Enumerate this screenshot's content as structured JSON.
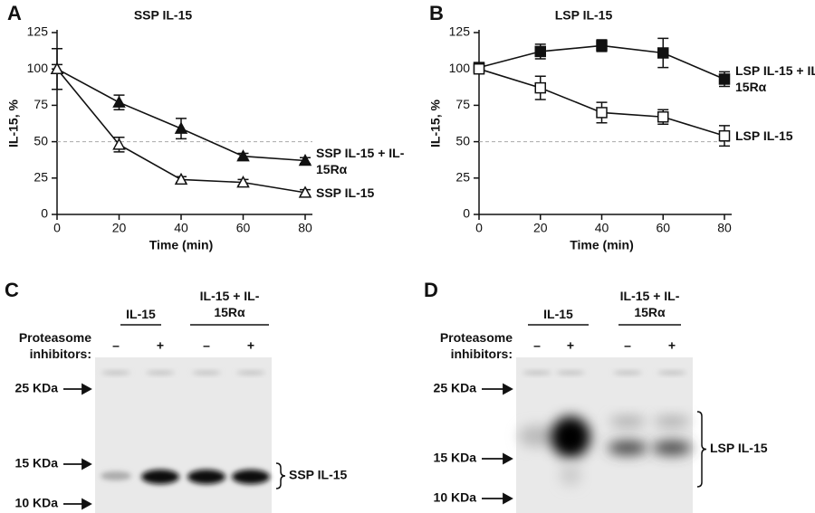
{
  "chart_data": [
    {
      "type": "line",
      "label": "A",
      "title": "SSP IL-15",
      "x_label": "Time (min)",
      "y_label": "IL-15, %",
      "x": [
        0,
        20,
        40,
        60,
        80
      ],
      "xlim": [
        0,
        80
      ],
      "xticks": [
        0,
        20,
        40,
        60,
        80
      ],
      "ylim": [
        0,
        125
      ],
      "yticks": [
        0,
        25,
        50,
        75,
        100,
        125
      ],
      "reference_line": 50,
      "series": [
        {
          "name": "SSP IL-15 + IL-15Rα",
          "color": "#111111",
          "marker": "triangle",
          "filled": true,
          "values": [
            100,
            77,
            59,
            40,
            37
          ],
          "errors": [
            3,
            5,
            7,
            2,
            2
          ]
        },
        {
          "name": "SSP IL-15",
          "color": "#111111",
          "marker": "triangle",
          "filled": false,
          "values": [
            100,
            48,
            24,
            22,
            15
          ],
          "errors": [
            14,
            5,
            2,
            2,
            2
          ]
        }
      ]
    },
    {
      "type": "line",
      "label": "B",
      "title": "LSP IL-15",
      "x_label": "Time (min)",
      "y_label": "IL-15, %",
      "x": [
        0,
        20,
        40,
        60,
        80
      ],
      "xlim": [
        0,
        80
      ],
      "xticks": [
        0,
        20,
        40,
        60,
        80
      ],
      "ylim": [
        0,
        125
      ],
      "yticks": [
        0,
        25,
        50,
        75,
        100,
        125
      ],
      "reference_line": 50,
      "series": [
        {
          "name": "LSP IL-15 + IL-15Rα",
          "color": "#111111",
          "marker": "square",
          "filled": true,
          "values": [
            101,
            112,
            116,
            111,
            93
          ],
          "errors": [
            3,
            5,
            4,
            10,
            5
          ]
        },
        {
          "name": "LSP IL-15",
          "color": "#111111",
          "marker": "square",
          "filled": false,
          "values": [
            100,
            87,
            70,
            67,
            54
          ],
          "errors": [
            3,
            8,
            7,
            5,
            7
          ]
        }
      ]
    }
  ],
  "blots": [
    {
      "label": "C",
      "groups": [
        "IL-15",
        "IL-15 + IL-15Rα"
      ],
      "row_label": "Proteasome inhibitors:",
      "lanes": [
        "–",
        "+",
        "–",
        "+"
      ],
      "markers": [
        "25 KDa",
        "15 KDa",
        "10 KDa"
      ],
      "band_label": "SSP IL-15"
    },
    {
      "label": "D",
      "groups": [
        "IL-15",
        "IL-15 + IL-15Rα"
      ],
      "row_label": "Proteasome inhibitors:",
      "lanes": [
        "–",
        "+",
        "–",
        "+"
      ],
      "markers": [
        "25 KDa",
        "15 KDa",
        "10 KDa"
      ],
      "band_label": "LSP IL-15"
    }
  ]
}
